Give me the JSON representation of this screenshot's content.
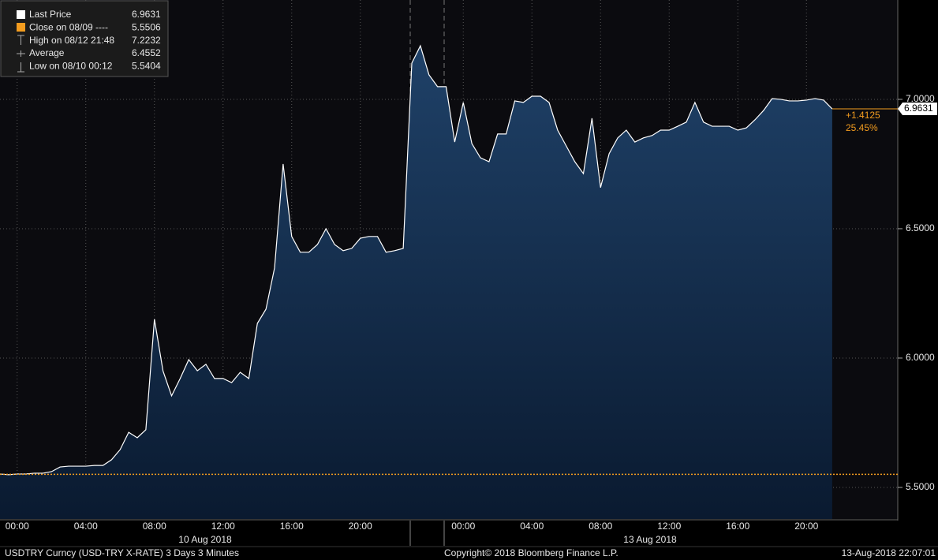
{
  "chart_data": {
    "type": "area",
    "color": "#ffffff",
    "values": [
      5.552,
      5.549,
      5.552,
      5.552,
      5.555,
      5.555,
      5.561,
      5.579,
      5.582,
      5.582,
      5.582,
      5.585,
      5.585,
      5.607,
      5.646,
      5.713,
      5.692,
      5.723,
      6.15,
      5.95,
      5.854,
      5.921,
      5.994,
      5.951,
      5.976,
      5.921,
      5.921,
      5.905,
      5.945,
      5.921,
      6.134,
      6.189,
      6.348,
      6.75,
      6.47,
      6.409,
      6.409,
      6.439,
      6.5,
      6.439,
      6.415,
      6.424,
      6.463,
      6.47,
      6.47,
      6.409,
      6.415,
      6.424,
      7.14,
      7.207,
      7.095,
      7.049,
      7.049,
      6.835,
      6.988,
      6.829,
      6.774,
      6.759,
      6.866,
      6.866,
      6.994,
      6.988,
      7.012,
      7.012,
      6.988,
      6.881,
      6.82,
      6.759,
      6.713,
      6.927,
      6.659,
      6.79,
      6.851,
      6.881,
      6.835,
      6.851,
      6.86,
      6.881,
      6.881,
      6.896,
      6.912,
      6.988,
      6.912,
      6.896,
      6.896,
      6.896,
      6.881,
      6.89,
      6.921,
      6.957,
      7.003,
      7,
      6.994,
      6.994,
      6.997,
      7.003,
      6.997,
      6.963
    ],
    "categories": [
      null,
      null,
      "00:00",
      null,
      null,
      null,
      null,
      null,
      null,
      null,
      "04:00",
      null,
      null,
      null,
      null,
      null,
      null,
      null,
      "08:00",
      null,
      null,
      null,
      null,
      null,
      null,
      null,
      "12:00",
      null,
      null,
      null,
      null,
      null,
      null,
      null,
      "16:00",
      null,
      null,
      null,
      null,
      null,
      null,
      null,
      "20:00",
      null,
      null,
      null,
      null,
      null,
      null,
      null,
      null,
      null,
      null,
      null,
      "00:00",
      null,
      null,
      null,
      null,
      null,
      null,
      null,
      "04:00",
      null,
      null,
      null,
      null,
      null,
      null,
      null,
      "08:00",
      null,
      null,
      null,
      null,
      null,
      null,
      null,
      "12:00",
      null,
      null,
      null,
      null,
      null,
      null,
      null,
      "16:00",
      null,
      null,
      null,
      null,
      null,
      null,
      null,
      "20:00",
      null,
      null,
      null
    ],
    "ylim": [
      5.378,
      7.384
    ],
    "yticks": [
      {
        "value": 5.5,
        "label": "5.5000"
      },
      {
        "value": 6.0,
        "label": "6.0000"
      },
      {
        "value": 6.5,
        "label": "6.5000"
      },
      {
        "value": 7.0,
        "label": "7.0000"
      }
    ],
    "grid": true,
    "x_group_labels": [
      "10 Aug 2018",
      "13 Aug 2018"
    ],
    "legend_stats": [
      {
        "label": "Last Price",
        "value": 6.9631
      },
      {
        "label": "Close on 08/09 ----",
        "value": 5.5506
      },
      {
        "label": "High on 08/12 21:48",
        "value": 7.2232
      },
      {
        "label": "Average",
        "value": 6.4552
      },
      {
        "label": "Low on 08/10 00:12",
        "value": 5.5404
      }
    ],
    "change": {
      "value": 1.4125,
      "label": "+1.4125"
    },
    "change_pct": {
      "value": 25.45,
      "label": "25.45%"
    },
    "reference_color": "#f39c1f",
    "footer": {
      "left": "USDTRY Curncy (USD-TRY X-RATE) 3 Days 3 Minutes",
      "center": "Copyright© 2018 Bloomberg Finance L.P.",
      "right": "13-Aug-2018 22:07:01"
    }
  }
}
